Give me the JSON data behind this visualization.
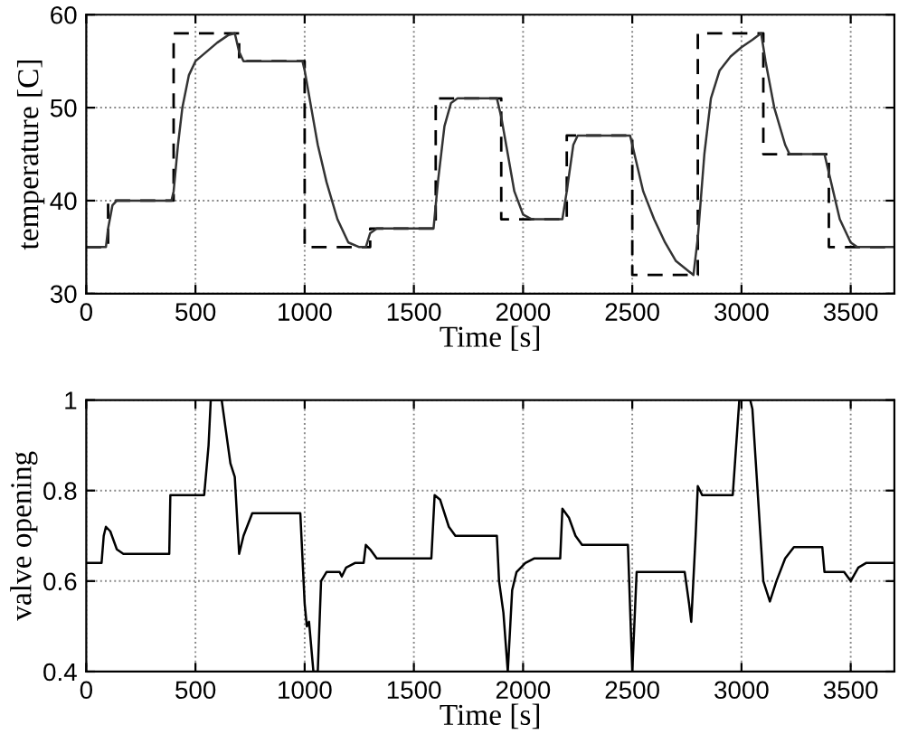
{
  "chart_data": [
    {
      "type": "line",
      "xlabel": "Time [s]",
      "ylabel": "temperature [C]",
      "xlim": [
        0,
        3700
      ],
      "ylim": [
        30,
        60
      ],
      "xticks": [
        0,
        500,
        1000,
        1500,
        2000,
        2500,
        3000,
        3500
      ],
      "yticks": [
        30,
        40,
        50,
        60
      ],
      "grid": true,
      "series": [
        {
          "type": "step",
          "color": "#000000",
          "line_style": "dashed",
          "x": [
            0,
            100,
            400,
            700,
            1000,
            1300,
            1600,
            1900,
            2200,
            2500,
            2800,
            3100,
            3400,
            3700
          ],
          "values": [
            35,
            40,
            58,
            55,
            35,
            37,
            51,
            38,
            47,
            32,
            58,
            45,
            35,
            35
          ]
        },
        {
          "color": "#333333",
          "line_style": "solid",
          "x": [
            0,
            90,
            100,
            120,
            140,
            390,
            400,
            420,
            440,
            470,
            500,
            550,
            600,
            650,
            680,
            700,
            720,
            990,
            1000,
            1030,
            1060,
            1100,
            1150,
            1200,
            1250,
            1280,
            1300,
            1330,
            1590,
            1610,
            1640,
            1670,
            1700,
            1880,
            1900,
            1930,
            1960,
            2000,
            2040,
            2180,
            2200,
            2230,
            2250,
            2490,
            2510,
            2550,
            2600,
            2650,
            2700,
            2780,
            2800,
            2830,
            2860,
            2900,
            2950,
            3000,
            3050,
            3090,
            3110,
            3150,
            3200,
            3220,
            3380,
            3400,
            3450,
            3500,
            3530,
            3700
          ],
          "values": [
            35,
            35,
            37,
            39.5,
            40,
            40,
            41,
            46,
            50,
            53.5,
            55,
            56,
            57,
            57.8,
            58,
            56,
            55,
            55,
            54,
            50,
            46,
            42,
            38,
            35.5,
            35,
            35,
            36.5,
            37,
            37,
            42,
            48,
            50.5,
            51,
            51,
            49,
            45,
            41,
            38.5,
            38,
            38,
            41,
            46,
            47,
            47,
            45,
            41,
            38,
            35.5,
            33.5,
            32,
            36,
            45,
            51,
            54,
            55.5,
            56.5,
            57.3,
            58,
            55,
            50,
            46,
            45,
            45,
            43,
            38,
            35.5,
            35,
            35
          ]
        }
      ]
    },
    {
      "type": "line",
      "xlabel": "Time [s]",
      "ylabel": "valve opening",
      "xlim": [
        0,
        3700
      ],
      "ylim": [
        0.4,
        1
      ],
      "xticks": [
        0,
        500,
        1000,
        1500,
        2000,
        2500,
        3000,
        3500
      ],
      "yticks": [
        0.4,
        0.6,
        0.8,
        1
      ],
      "grid": true,
      "series": [
        {
          "color": "#000000",
          "line_style": "solid",
          "x": [
            0,
            70,
            80,
            90,
            110,
            140,
            170,
            380,
            385,
            540,
            560,
            570,
            620,
            640,
            660,
            680,
            700,
            720,
            760,
            980,
            1000,
            1010,
            1020,
            1040,
            1060,
            1075,
            1100,
            1160,
            1170,
            1190,
            1230,
            1270,
            1280,
            1300,
            1330,
            1580,
            1595,
            1620,
            1660,
            1690,
            1880,
            1890,
            1910,
            1930,
            1950,
            1970,
            2010,
            2050,
            2170,
            2180,
            2210,
            2240,
            2270,
            2480,
            2500,
            2520,
            2740,
            2760,
            2770,
            2790,
            2800,
            2820,
            2960,
            2990,
            3040,
            3050,
            3100,
            3130,
            3160,
            3200,
            3240,
            3370,
            3380,
            3470,
            3500,
            3535,
            3570,
            3700
          ],
          "values": [
            0.64,
            0.64,
            0.7,
            0.72,
            0.71,
            0.67,
            0.66,
            0.66,
            0.79,
            0.79,
            0.9,
            1,
            1,
            0.93,
            0.86,
            0.83,
            0.66,
            0.7,
            0.75,
            0.75,
            0.55,
            0.5,
            0.51,
            0.4,
            0.4,
            0.6,
            0.62,
            0.62,
            0.61,
            0.63,
            0.64,
            0.64,
            0.68,
            0.67,
            0.65,
            0.65,
            0.79,
            0.78,
            0.72,
            0.7,
            0.7,
            0.6,
            0.53,
            0.4,
            0.58,
            0.62,
            0.64,
            0.65,
            0.65,
            0.76,
            0.74,
            0.7,
            0.68,
            0.68,
            0.4,
            0.62,
            0.62,
            0.55,
            0.51,
            0.7,
            0.81,
            0.79,
            0.79,
            1,
            1,
            0.98,
            0.6,
            0.555,
            0.6,
            0.65,
            0.675,
            0.675,
            0.62,
            0.62,
            0.6,
            0.63,
            0.64,
            0.64
          ]
        }
      ]
    }
  ]
}
